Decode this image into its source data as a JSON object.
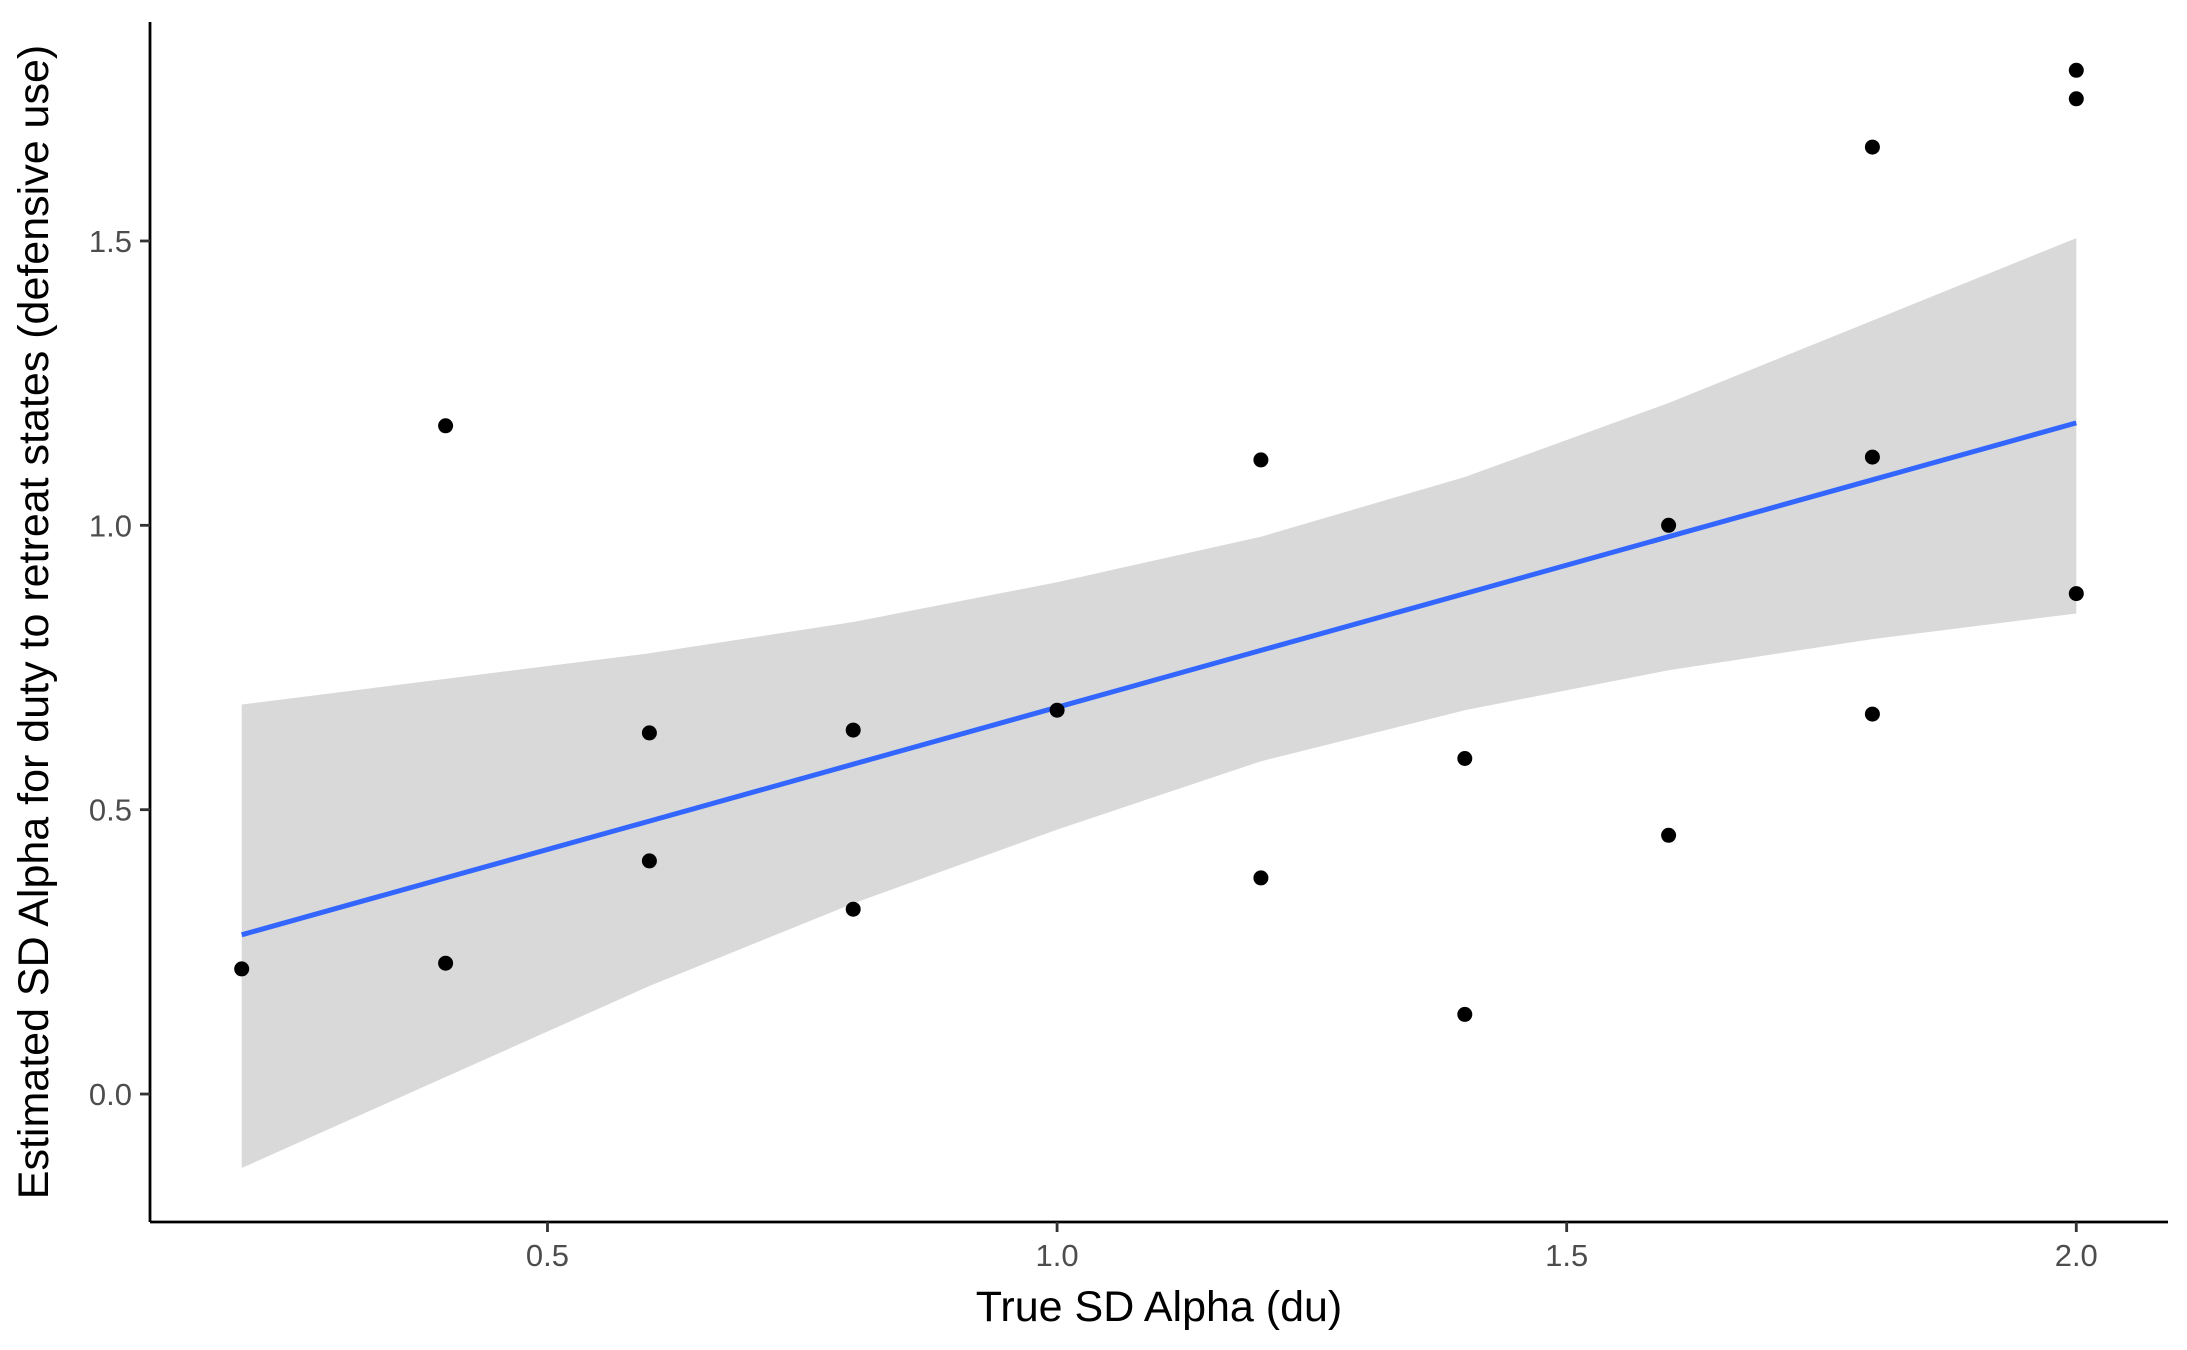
{
  "chart_data": {
    "type": "scatter",
    "title": "",
    "xlabel": "True SD Alpha (du)",
    "ylabel": "Estimated SD Alpha for duty to retreat states (defensive use)",
    "xlim": [
      0.11,
      2.09
    ],
    "ylim": [
      -0.225,
      1.885
    ],
    "x_ticks": [
      0.5,
      1.0,
      1.5,
      2.0
    ],
    "x_tick_labels": [
      "0.5",
      "1.0",
      "1.5",
      "2.0"
    ],
    "y_ticks": [
      0.0,
      0.5,
      1.0,
      1.5
    ],
    "y_tick_labels": [
      "0.0",
      "0.5",
      "1.0",
      "1.5"
    ],
    "grid": false,
    "legend": "none",
    "points": {
      "x": [
        0.2,
        0.4,
        0.4,
        0.6,
        0.6,
        0.8,
        0.8,
        1.0,
        1.2,
        1.2,
        1.4,
        1.4,
        1.6,
        1.6,
        1.8,
        1.8,
        1.8,
        2.0,
        2.0,
        2.0
      ],
      "y": [
        0.22,
        1.175,
        0.23,
        0.635,
        0.41,
        0.64,
        0.325,
        0.675,
        1.115,
        0.38,
        0.59,
        0.14,
        1.0,
        0.455,
        1.665,
        1.12,
        0.668,
        1.8,
        1.75,
        0.88
      ]
    },
    "fit": {
      "method": "linear",
      "x": [
        0.2,
        0.4,
        0.6,
        0.8,
        1.0,
        1.2,
        1.4,
        1.6,
        1.8,
        2.0
      ],
      "y": [
        0.28,
        0.38,
        0.48,
        0.58,
        0.68,
        0.78,
        0.88,
        0.98,
        1.08,
        1.18
      ],
      "ci_lower": [
        -0.13,
        0.03,
        0.19,
        0.335,
        0.465,
        0.585,
        0.675,
        0.745,
        0.8,
        0.845
      ],
      "ci_upper": [
        0.685,
        0.73,
        0.775,
        0.83,
        0.9,
        0.98,
        1.085,
        1.215,
        1.36,
        1.505
      ]
    },
    "colors": {
      "points": "#000000",
      "line": "#3366FF",
      "ribbon": "#D9D9D9"
    }
  }
}
